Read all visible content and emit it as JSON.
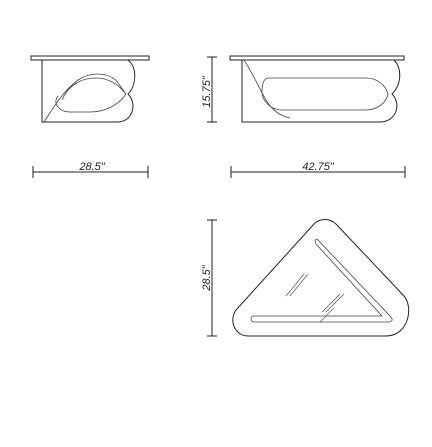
{
  "dimensions": {
    "side_width": "28.5\"",
    "height": "15.75\"",
    "front_width": "42.75\"",
    "plan_depth": "28.5\""
  }
}
